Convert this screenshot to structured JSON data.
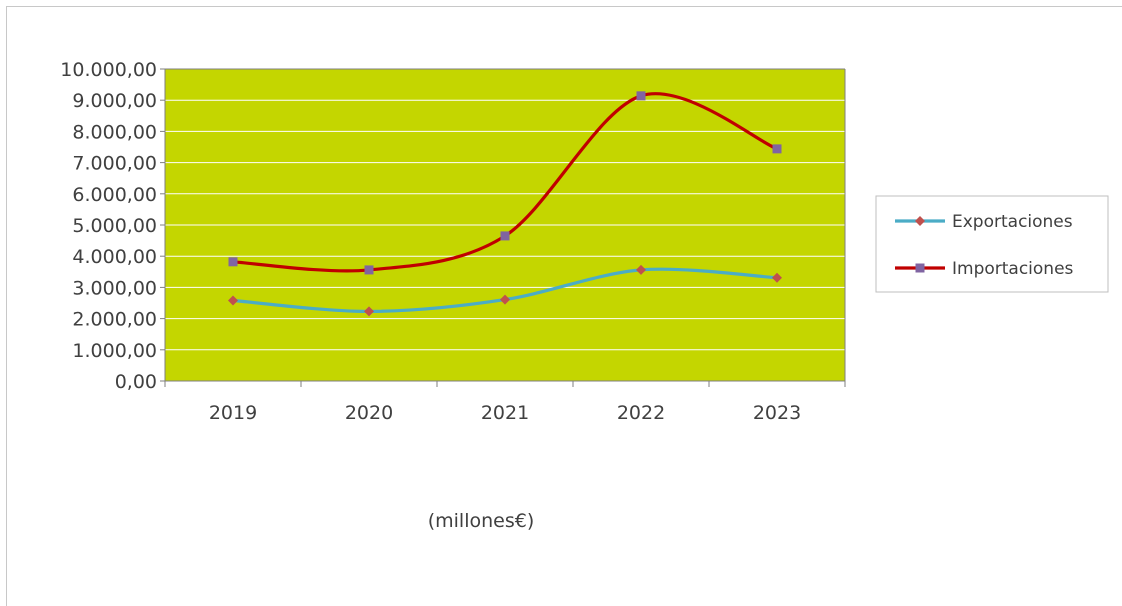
{
  "chart_data": {
    "type": "line",
    "categories": [
      "2019",
      "2020",
      "2021",
      "2022",
      "2023"
    ],
    "ylim": [
      0,
      10000
    ],
    "y_ticks": [
      "0,00",
      "1.000,00",
      "2.000,00",
      "3.000,00",
      "4.000,00",
      "5.000,00",
      "6.000,00",
      "7.000,00",
      "8.000,00",
      "9.000,00",
      "10.000,00"
    ],
    "series": [
      {
        "name": "Exportaciones",
        "color": "#4bacc6",
        "marker": "diamond",
        "marker_color": "#c0504d",
        "values": [
          2580,
          2230,
          2610,
          3560,
          3310
        ]
      },
      {
        "name": "Importaciones",
        "color": "#c00000",
        "marker": "square",
        "marker_color": "#8064a2",
        "values": [
          3820,
          3560,
          4650,
          9140,
          7440
        ]
      }
    ],
    "plot_background": "#c4d600",
    "grid": true,
    "legend_position": "right",
    "footer": "(millones€)"
  }
}
